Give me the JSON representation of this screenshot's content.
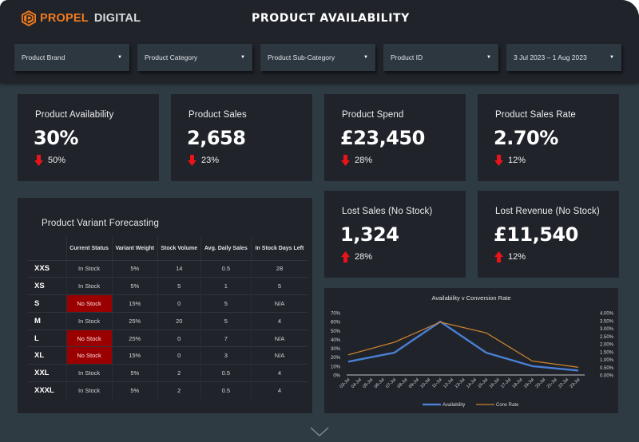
{
  "header": {
    "logo_primary": "PROPEL",
    "logo_secondary": "DIGITAL",
    "title": "PRODUCT AVAILABILITY",
    "brand_color": "#f07b1d"
  },
  "filters": [
    {
      "label": "Product Brand",
      "icon": "caret-down-icon"
    },
    {
      "label": "Product Category",
      "icon": "caret-down-icon"
    },
    {
      "label": "Product Sub-Category",
      "icon": "caret-down-icon"
    },
    {
      "label": "Product ID",
      "icon": "caret-down-icon"
    },
    {
      "label": "3 Jul 2023 – 1 Aug 2023",
      "icon": "caret-down-icon"
    }
  ],
  "kpis": [
    {
      "title": "Product Availability",
      "value": "30%",
      "delta": "50%",
      "direction": "down"
    },
    {
      "title": "Product Sales",
      "value": "2,658",
      "delta": "23%",
      "direction": "down"
    },
    {
      "title": "Product Spend",
      "value": "£23,450",
      "delta": "28%",
      "direction": "down"
    },
    {
      "title": "Product Sales Rate",
      "value": "2.70%",
      "delta": "12%",
      "direction": "down"
    },
    {
      "title": "Lost Sales (No Stock)",
      "value": "1,324",
      "delta": "28%",
      "direction": "up"
    },
    {
      "title": "Lost Revenue (No Stock)",
      "value": "£11,540",
      "delta": "12%",
      "direction": "up"
    }
  ],
  "delta_color": "#e8141a",
  "forecast": {
    "title": "Product Variant Forecasting",
    "headers": [
      "",
      "Current Status",
      "Variant Weight",
      "Stock Volume",
      "Avg. Daily Sales",
      "In Stock Days Left"
    ],
    "rows": [
      {
        "size": "XXS",
        "status": "In Stock",
        "weight": "5%",
        "stock": "14",
        "avg": "0.5",
        "days": "28"
      },
      {
        "size": "XS",
        "status": "In Stock",
        "weight": "5%",
        "stock": "5",
        "avg": "1",
        "days": "5"
      },
      {
        "size": "S",
        "status": "No Stock",
        "weight": "15%",
        "stock": "0",
        "avg": "5",
        "days": "N/A"
      },
      {
        "size": "M",
        "status": "In Stock",
        "weight": "25%",
        "stock": "20",
        "avg": "5",
        "days": "4"
      },
      {
        "size": "L",
        "status": "No Stock",
        "weight": "25%",
        "stock": "0",
        "avg": "7",
        "days": "N/A"
      },
      {
        "size": "XL",
        "status": "No Stock",
        "weight": "15%",
        "stock": "0",
        "avg": "3",
        "days": "N/A"
      },
      {
        "size": "XXL",
        "status": "In Stock",
        "weight": "5%",
        "stock": "2",
        "avg": "0.5",
        "days": "4"
      },
      {
        "size": "XXXL",
        "status": "In Stock",
        "weight": "5%",
        "stock": "2",
        "avg": "0.5",
        "days": "4"
      }
    ],
    "no_stock_color": "#9a0000"
  },
  "chart_data": {
    "type": "line",
    "title": "Availability v Conversion Rate",
    "x": [
      "03-Jul",
      "04-Jul",
      "05-Jul",
      "06-Jul",
      "07-Jul",
      "08-Jul",
      "09-Jul",
      "10-Jul",
      "11-Jul",
      "12-Jul",
      "13-Jul",
      "14-Jul",
      "15-Jul",
      "16-Jul",
      "17-Jul",
      "18-Jul",
      "19-Jul",
      "20-Jul",
      "21-Jul",
      "22-Jul",
      "23-Jul"
    ],
    "series": [
      {
        "name": "Availability",
        "axis": "left",
        "color": "#4a7fd4",
        "points": [
          [
            0,
            15
          ],
          [
            4,
            25
          ],
          [
            8,
            60
          ],
          [
            12,
            25
          ],
          [
            16,
            10
          ],
          [
            20,
            5
          ]
        ]
      },
      {
        "name": "Conv Rate",
        "axis": "right",
        "color": "#c88030",
        "points": [
          [
            0,
            1.3
          ],
          [
            4,
            2.1
          ],
          [
            8,
            3.4
          ],
          [
            12,
            2.7
          ],
          [
            16,
            0.9
          ],
          [
            20,
            0.5
          ]
        ]
      }
    ],
    "y_left": {
      "min": 0,
      "max": 70,
      "step": 10,
      "format": "percent0",
      "ticks": [
        "0%",
        "10%",
        "20%",
        "30%",
        "40%",
        "50%",
        "60%",
        "70%"
      ]
    },
    "y_right": {
      "min": 0,
      "max": 4,
      "step": 0.5,
      "format": "percent2",
      "ticks": [
        "0.00%",
        "0.50%",
        "1.00%",
        "1.50%",
        "2.00%",
        "2.50%",
        "3.00%",
        "3.50%",
        "4.00%"
      ]
    },
    "xlabel": "",
    "ylabel": "",
    "grid": false,
    "legend": "bottom"
  },
  "scroll": {
    "icon": "chevron-down-icon"
  }
}
